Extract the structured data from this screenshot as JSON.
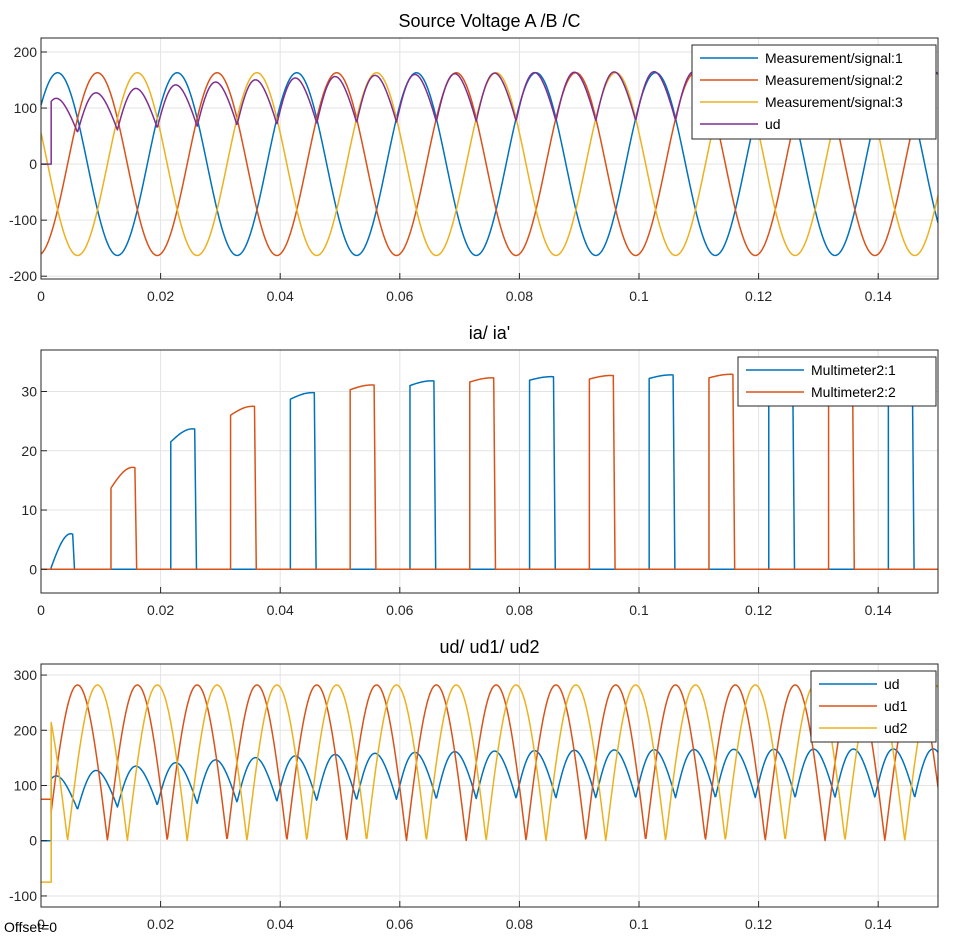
{
  "footer": {
    "offset_label": "Offset=0"
  },
  "chart_data": [
    {
      "type": "line",
      "title": "Source Voltage A /B /C",
      "xlim": [
        0,
        0.15
      ],
      "ylim": [
        -205,
        225
      ],
      "xticks": [
        0,
        0.02,
        0.04,
        0.06,
        0.08,
        0.1,
        0.12,
        0.14
      ],
      "xtick_labels": [
        "0",
        "0.02",
        "0.04",
        "0.06",
        "0.08",
        "0.1",
        "0.12",
        "0.14"
      ],
      "yticks": [
        -200,
        -100,
        0,
        100,
        200
      ],
      "ytick_labels": [
        "-200",
        "-100",
        "0",
        "100",
        "200"
      ],
      "grid": true,
      "legend_position": "top-right",
      "series": [
        {
          "name": "Measurement/signal:1",
          "color": "#0072BD",
          "kind": "sine",
          "amplitude": 163,
          "frequency": 50,
          "phase_deg": 40
        },
        {
          "name": "Measurement/signal:2",
          "color": "#D95319",
          "kind": "sine",
          "amplitude": 163,
          "frequency": 50,
          "phase_deg": -80
        },
        {
          "name": "Measurement/signal:3",
          "color": "#EDB120",
          "kind": "sine",
          "amplitude": 163,
          "frequency": 50,
          "phase_deg": 160
        },
        {
          "name": "ud",
          "color": "#7E2F8E",
          "kind": "ud_envelope"
        }
      ]
    },
    {
      "type": "line",
      "title": "ia/ ia'",
      "xlim": [
        0,
        0.15
      ],
      "ylim": [
        -4,
        37
      ],
      "xticks": [
        0,
        0.02,
        0.04,
        0.06,
        0.08,
        0.1,
        0.12,
        0.14
      ],
      "xtick_labels": [
        "0",
        "0.02",
        "0.04",
        "0.06",
        "0.08",
        "0.1",
        "0.12",
        "0.14"
      ],
      "yticks": [
        0,
        10,
        20,
        30
      ],
      "ytick_labels": [
        "0",
        "10",
        "20",
        "30"
      ],
      "grid": true,
      "legend_position": "top-right",
      "series": [
        {
          "name": "Multimeter2:1",
          "color": "#0072BD",
          "kind": "pulses",
          "pulses": [
            {
              "start": 0.0017,
              "end": 0.0053,
              "rise": 0.3,
              "peak": 6.0
            },
            {
              "start": 0.0217,
              "end": 0.0257,
              "rise": 21.5,
              "peak": 23.7
            },
            {
              "start": 0.0417,
              "end": 0.0457,
              "rise": 28.7,
              "peak": 29.8
            },
            {
              "start": 0.0617,
              "end": 0.0657,
              "rise": 31.0,
              "peak": 31.8
            },
            {
              "start": 0.0817,
              "end": 0.0857,
              "rise": 31.9,
              "peak": 32.5
            },
            {
              "start": 0.1017,
              "end": 0.1057,
              "rise": 32.2,
              "peak": 32.8
            },
            {
              "start": 0.1217,
              "end": 0.1257,
              "rise": 32.3,
              "peak": 32.9
            },
            {
              "start": 0.1417,
              "end": 0.1457,
              "rise": 32.4,
              "peak": 33.0
            }
          ]
        },
        {
          "name": "Multimeter2:2",
          "color": "#D95319",
          "kind": "pulses",
          "pulses": [
            {
              "start": 0.0117,
              "end": 0.0157,
              "rise": 13.7,
              "peak": 17.2
            },
            {
              "start": 0.0317,
              "end": 0.0357,
              "rise": 26.0,
              "peak": 27.5
            },
            {
              "start": 0.0517,
              "end": 0.0557,
              "rise": 30.3,
              "peak": 31.1
            },
            {
              "start": 0.0717,
              "end": 0.0757,
              "rise": 31.6,
              "peak": 32.3
            },
            {
              "start": 0.0917,
              "end": 0.0957,
              "rise": 32.1,
              "peak": 32.7
            },
            {
              "start": 0.1117,
              "end": 0.1157,
              "rise": 32.3,
              "peak": 32.9
            },
            {
              "start": 0.1317,
              "end": 0.1357,
              "rise": 32.4,
              "peak": 33.0
            }
          ]
        }
      ]
    },
    {
      "type": "line",
      "title": "ud/ ud1/ ud2",
      "xlim": [
        0,
        0.15
      ],
      "ylim": [
        -120,
        320
      ],
      "xticks": [
        0,
        0.02,
        0.04,
        0.06,
        0.08,
        0.1,
        0.12,
        0.14
      ],
      "xtick_labels": [
        "0",
        "0.02",
        "0.04",
        "0.06",
        "0.08",
        "0.1",
        "0.12",
        "0.14"
      ],
      "yticks": [
        -100,
        0,
        100,
        200,
        300
      ],
      "ytick_labels": [
        "-100",
        "0",
        "100",
        "200",
        "300"
      ],
      "grid": true,
      "legend_position": "top-right",
      "series": [
        {
          "name": "ud",
          "color": "#0072BD",
          "kind": "ud_envelope"
        },
        {
          "name": "ud1",
          "color": "#D95319",
          "kind": "line_line",
          "amplitude": 282,
          "phase_deg": -20,
          "start": 0.0017,
          "init": 75
        },
        {
          "name": "ud2",
          "color": "#EDB120",
          "kind": "line_line",
          "amplitude": 282,
          "phase_deg": 100,
          "start": 0.0017,
          "init": -75
        }
      ]
    }
  ]
}
